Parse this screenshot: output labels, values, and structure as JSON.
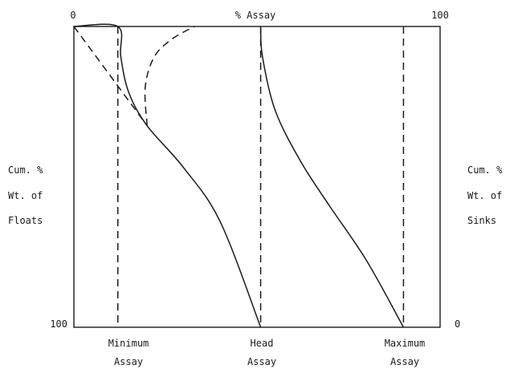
{
  "top_axis": {
    "left_value": "0",
    "title": "% Assay",
    "right_value": "100"
  },
  "left_axis": {
    "top_value": "0",
    "bottom_value": "100",
    "label_lines": [
      "Cum. %",
      "Wt. of",
      "Floats"
    ]
  },
  "right_axis": {
    "bottom_value": "0",
    "label_lines": [
      "Cum. %",
      "Wt. of",
      "Sinks"
    ]
  },
  "bottom_labels": {
    "minimum": [
      "Minimum",
      "Assay"
    ],
    "head": [
      "Head",
      "Assay"
    ],
    "maximum": [
      "Maximum",
      "Assay"
    ]
  },
  "diagram": {
    "x_range": [
      0,
      100
    ],
    "y_range": [
      0,
      100
    ],
    "assay_markers": {
      "minimum": 12,
      "head": 51,
      "maximum": 90
    },
    "curves": {
      "float_curve": [
        [
          0,
          0
        ],
        [
          12,
          0
        ],
        [
          12.8,
          10
        ],
        [
          15,
          22
        ],
        [
          20,
          33
        ],
        [
          30,
          47
        ],
        [
          40,
          65
        ],
        [
          51,
          100
        ]
      ],
      "sink_curve": [
        [
          51,
          0
        ],
        [
          51.5,
          10
        ],
        [
          55,
          28
        ],
        [
          62,
          45
        ],
        [
          70,
          60
        ],
        [
          80,
          78
        ],
        [
          90,
          100
        ]
      ],
      "float_tangent_line": [
        [
          0,
          0
        ],
        [
          20,
          33
        ]
      ],
      "concentrate_curve_dashed": [
        [
          20,
          33
        ],
        [
          19.5,
          20
        ],
        [
          22,
          10
        ],
        [
          27,
          4
        ],
        [
          33,
          0
        ]
      ]
    }
  },
  "colors": {
    "ink": "#1a1a1a",
    "background": "#ffffff"
  }
}
